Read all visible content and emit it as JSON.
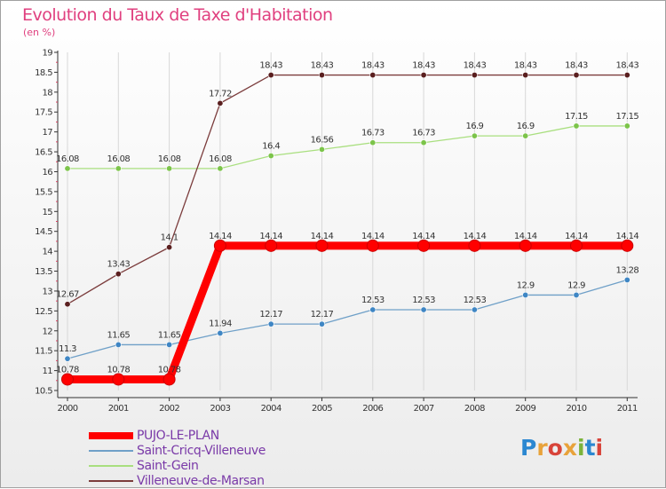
{
  "title": "Evolution du Taux de Taxe d'Habitation",
  "subtitle": "(en %)",
  "logo": {
    "text": "Proxiti",
    "letters": [
      {
        "ch": "P",
        "color": "#2b87d1"
      },
      {
        "ch": "r",
        "color": "#e8a23a"
      },
      {
        "ch": "o",
        "color": "#d8443a"
      },
      {
        "ch": "x",
        "color": "#e8a23a"
      },
      {
        "ch": "i",
        "color": "#7bb33a"
      },
      {
        "ch": "t",
        "color": "#2b87d1"
      },
      {
        "ch": "i",
        "color": "#d8443a"
      }
    ]
  },
  "chart_data": {
    "type": "line",
    "title": "Evolution du Taux de Taxe d'Habitation",
    "subtitle": "(en %)",
    "x": [
      "2000",
      "2001",
      "2002",
      "2003",
      "2004",
      "2005",
      "2006",
      "2007",
      "2008",
      "2009",
      "2010",
      "2011"
    ],
    "ylim": [
      10.5,
      19
    ],
    "yticks": [
      "10.5",
      "11",
      "11.5",
      "12",
      "12.5",
      "13",
      "13.5",
      "14",
      "14.5",
      "15",
      "15.5",
      "16",
      "16.5",
      "17",
      "17.5",
      "18",
      "18.5",
      "19"
    ],
    "grid": "vertical",
    "legend_position": "bottom-left",
    "series": [
      {
        "name": "PUJO-LE-PLAN",
        "color": "#ff0000",
        "style": "thick",
        "values": [
          10.78,
          10.78,
          10.78,
          14.14,
          14.14,
          14.14,
          14.14,
          14.14,
          14.14,
          14.14,
          14.14,
          14.14
        ],
        "labels": [
          "10.78",
          "10.78",
          "10.78",
          "14.14",
          "14.14",
          "14.14",
          "14.14",
          "14.14",
          "14.14",
          "14.14",
          "14.14",
          "14.14"
        ]
      },
      {
        "name": "Saint-Cricq-Villeneuve",
        "color": "#6fa0c8",
        "markerColor": "#3f86c4",
        "style": "thin",
        "values": [
          11.3,
          11.65,
          11.65,
          11.94,
          12.17,
          12.17,
          12.53,
          12.53,
          12.53,
          12.9,
          12.9,
          13.28
        ],
        "labels": [
          "11.3",
          "11.65",
          "11.65",
          "11.94",
          "12.17",
          "12.17",
          "12.53",
          "12.53",
          "12.53",
          "12.9",
          "12.9",
          "13.28"
        ]
      },
      {
        "name": "Saint-Gein",
        "color": "#a9df7f",
        "markerColor": "#7cc44a",
        "style": "thin",
        "values": [
          16.08,
          16.08,
          16.08,
          16.08,
          16.4,
          16.56,
          16.73,
          16.73,
          16.9,
          16.9,
          17.15,
          17.15
        ],
        "labels": [
          "16.08",
          "16.08",
          "16.08",
          "16.08",
          "16.4",
          "16.56",
          "16.73",
          "16.73",
          "16.9",
          "16.9",
          "17.15",
          "17.15"
        ]
      },
      {
        "name": "Villeneuve-de-Marsan",
        "color": "#7b3c3c",
        "markerColor": "#5a1f1f",
        "style": "thin",
        "values": [
          12.67,
          13.43,
          14.1,
          17.72,
          18.43,
          18.43,
          18.43,
          18.43,
          18.43,
          18.43,
          18.43,
          18.43
        ],
        "labels": [
          "12.67",
          "13.43",
          "14.1",
          "17.72",
          "18.43",
          "18.43",
          "18.43",
          "18.43",
          "18.43",
          "18.43",
          "18.43",
          "18.43"
        ]
      }
    ]
  }
}
